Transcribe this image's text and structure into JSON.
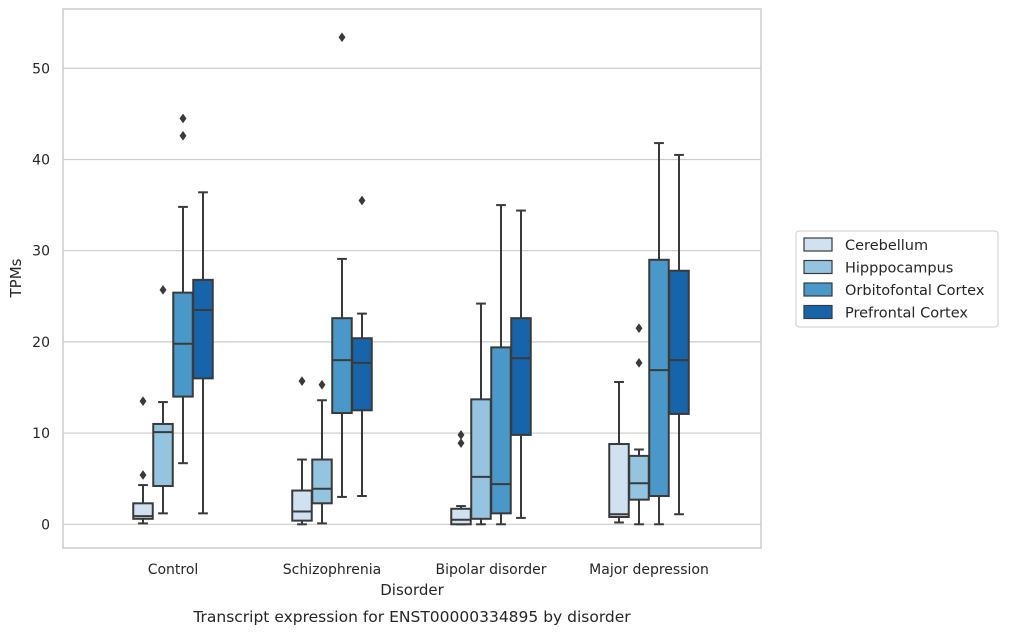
{
  "caption": "Transcript expression for ENST00000334895 by disorder",
  "colors": {
    "Cerebellum": "#d0e1f2",
    "Hipppocampus": "#94c4df",
    "Orbitofontal Cortex": "#4a98c9",
    "Prefrontal Cortex": "#1764ab",
    "grid": "#cccccc",
    "line": "#3a3a3a"
  },
  "chart_data": {
    "type": "box",
    "title": "",
    "xlabel": "Disorder",
    "ylabel": "TPMs",
    "ylim": [
      -2.6,
      56.5
    ],
    "yticks": [
      0,
      10,
      20,
      30,
      40,
      50
    ],
    "grid": true,
    "legend_position": "right",
    "categories": [
      "Control",
      "Schizophrenia",
      "Bipolar disorder",
      "Major depression"
    ],
    "series": [
      {
        "name": "Cerebellum",
        "boxes": [
          {
            "whislo": 0.1,
            "q1": 0.6,
            "med": 0.9,
            "q3": 2.3,
            "whishi": 4.3,
            "fliers": [
              5.4,
              13.5
            ]
          },
          {
            "whislo": 0.0,
            "q1": 0.4,
            "med": 1.4,
            "q3": 3.7,
            "whishi": 7.1,
            "fliers": [
              15.7
            ]
          },
          {
            "whislo": 0.0,
            "q1": 0.0,
            "med": 0.5,
            "q3": 1.7,
            "whishi": 2.0,
            "fliers": [
              8.9,
              9.8
            ]
          },
          {
            "whislo": 0.2,
            "q1": 0.8,
            "med": 1.1,
            "q3": 8.8,
            "whishi": 15.6,
            "fliers": []
          }
        ]
      },
      {
        "name": "Hipppocampus",
        "boxes": [
          {
            "whislo": 1.2,
            "q1": 4.2,
            "med": 10.1,
            "q3": 11.0,
            "whishi": 13.4,
            "fliers": [
              25.7
            ]
          },
          {
            "whislo": 0.1,
            "q1": 2.3,
            "med": 3.9,
            "q3": 7.1,
            "whishi": 13.6,
            "fliers": [
              15.3
            ]
          },
          {
            "whislo": 0.0,
            "q1": 0.6,
            "med": 5.2,
            "q3": 13.7,
            "whishi": 24.2,
            "fliers": []
          },
          {
            "whislo": 0.0,
            "q1": 2.7,
            "med": 4.5,
            "q3": 7.5,
            "whishi": 8.2,
            "fliers": [
              17.7,
              21.5
            ]
          }
        ]
      },
      {
        "name": "Orbitofontal Cortex",
        "boxes": [
          {
            "whislo": 6.7,
            "q1": 14.0,
            "med": 19.8,
            "q3": 25.4,
            "whishi": 34.8,
            "fliers": [
              42.6,
              44.5
            ]
          },
          {
            "whislo": 3.0,
            "q1": 12.2,
            "med": 18.0,
            "q3": 22.6,
            "whishi": 29.1,
            "fliers": [
              53.4
            ]
          },
          {
            "whislo": 0.0,
            "q1": 1.2,
            "med": 4.4,
            "q3": 19.4,
            "whishi": 35.0,
            "fliers": []
          },
          {
            "whislo": 0.0,
            "q1": 3.1,
            "med": 16.9,
            "q3": 29.0,
            "whishi": 41.8,
            "fliers": []
          }
        ]
      },
      {
        "name": "Prefrontal Cortex",
        "boxes": [
          {
            "whislo": 1.2,
            "q1": 16.0,
            "med": 23.5,
            "q3": 26.8,
            "whishi": 36.4,
            "fliers": []
          },
          {
            "whislo": 3.1,
            "q1": 12.5,
            "med": 17.7,
            "q3": 20.4,
            "whishi": 23.1,
            "fliers": [
              35.5
            ]
          },
          {
            "whislo": 0.7,
            "q1": 9.8,
            "med": 18.2,
            "q3": 22.6,
            "whishi": 34.4,
            "fliers": []
          },
          {
            "whislo": 1.1,
            "q1": 12.1,
            "med": 18.0,
            "q3": 27.8,
            "whishi": 40.5,
            "fliers": []
          }
        ]
      }
    ]
  }
}
